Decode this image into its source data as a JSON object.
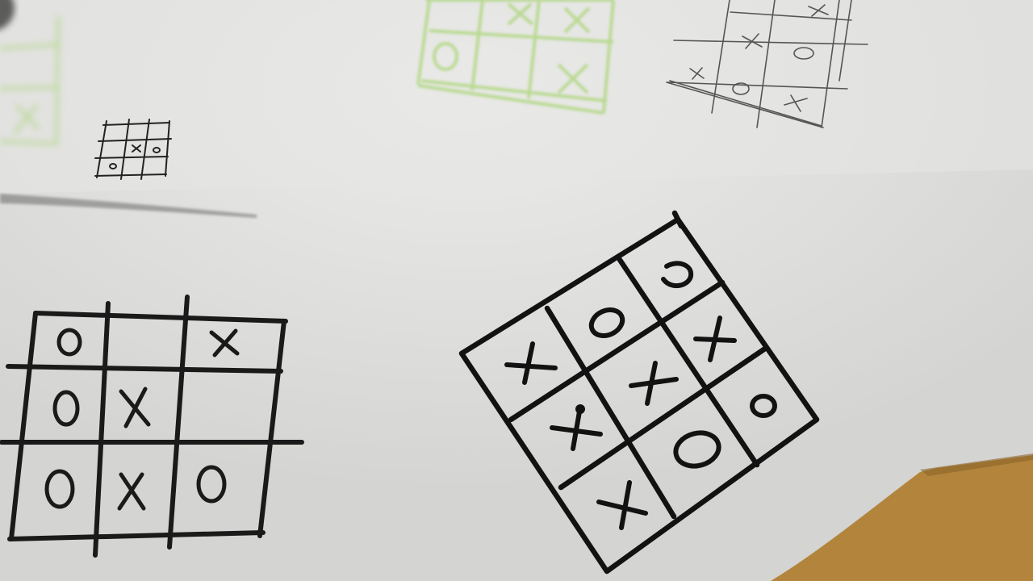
{
  "scene": {
    "description_tag": "photo",
    "colors": {
      "paper": "#e4e4e2",
      "paper_shadow": "#bdbdbb",
      "ink": "#151515",
      "pencil": "#5a5a5a",
      "green": "#9fd16a",
      "wood": "#b98a3e"
    }
  },
  "boards": {
    "big_diamond": {
      "cells": [
        "X",
        "O",
        "O",
        "X",
        "X",
        "X",
        "X",
        "O",
        "O"
      ]
    },
    "bottom_left": {
      "cells": [
        "O",
        "",
        "X",
        "O",
        "X",
        "",
        "O",
        "X",
        "O"
      ]
    },
    "top_right_pencil": {
      "cells": [
        "",
        "",
        "X",
        "",
        "X",
        "O",
        "X",
        "O",
        "X"
      ]
    },
    "tiny": {
      "cells": [
        "",
        "",
        "",
        "",
        "X",
        "O",
        "O",
        "",
        ""
      ]
    },
    "green_faded": {
      "cells": [
        "",
        "X",
        "X",
        "O",
        "",
        "X",
        "",
        "",
        ""
      ]
    }
  }
}
